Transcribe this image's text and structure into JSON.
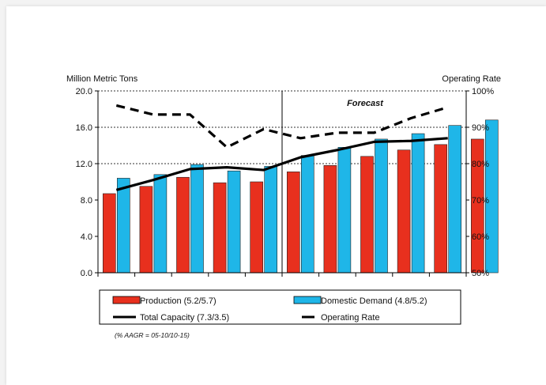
{
  "chart_data": {
    "type": "bar",
    "left_axis_title": "Million Metric Tons",
    "right_axis_title": "Operating Rate",
    "forecast_label": "Forecast",
    "note": "(% AAGR = 05-10/10-15)",
    "categories": [
      "",
      "",
      "",
      "",
      "",
      "",
      "",
      "",
      "",
      ""
    ],
    "y_left": {
      "min": 0,
      "max": 20,
      "ticks": [
        "0.0",
        "4.0",
        "8.0",
        "12.0",
        "16.0",
        "20.0"
      ]
    },
    "y_right": {
      "min": 50,
      "max": 100,
      "ticks": [
        "50%",
        "60%",
        "70%",
        "80%",
        "90%",
        "100%"
      ]
    },
    "grid": "dotted horizontal at 12.0, 16.0 and 20.0",
    "divider_after_category": 5,
    "series": [
      {
        "name": "Production (5.2/5.7)",
        "type": "bar",
        "axis": "left",
        "color": "#e8301e",
        "values": [
          8.7,
          9.5,
          10.5,
          9.9,
          10.0,
          11.1,
          11.8,
          12.8,
          13.5,
          14.1
        ]
      },
      {
        "name": "Domestic Demand (4.8/5.2)",
        "type": "bar",
        "axis": "left",
        "color": "#1fb6e8",
        "values": [
          10.4,
          10.8,
          11.9,
          11.2,
          11.7,
          12.9,
          13.8,
          14.7,
          15.3,
          16.2
        ]
      },
      {
        "name": "Total Capacity (7.3/3.5)",
        "type": "line",
        "axis": "left",
        "style": "solid",
        "color": "#000000",
        "values": [
          9.1,
          10.2,
          11.4,
          11.6,
          11.3,
          12.7,
          13.5,
          14.4,
          14.5,
          14.8
        ]
      },
      {
        "name": "Operating Rate",
        "type": "line",
        "axis": "right",
        "style": "dashed",
        "color": "#000000",
        "values": [
          96,
          93.5,
          93.5,
          84.5,
          89.5,
          87,
          88.5,
          88.5,
          92.5,
          95.5
        ]
      }
    ],
    "extra_bars_after_last_category": {
      "Production (5.2/5.7)": 14.7,
      "Domestic Demand (4.8/5.2)": 16.8
    }
  }
}
